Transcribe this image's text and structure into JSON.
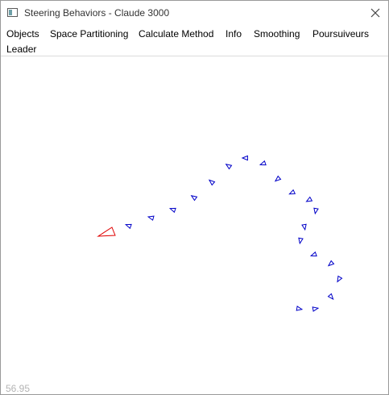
{
  "window": {
    "title": "Steering Behaviors - Claude 3000",
    "icon": "app-window-icon",
    "close_icon": "close-icon"
  },
  "menu": {
    "items": [
      {
        "label": "Objects"
      },
      {
        "label": "Space Partitioning"
      },
      {
        "label": "Calculate Method"
      },
      {
        "label": "Info"
      },
      {
        "label": "Smoothing"
      },
      {
        "label": "Poursuiveurs"
      },
      {
        "label": "Leader"
      }
    ]
  },
  "scene": {
    "leader_color": "#e00000",
    "follower_color": "#0000c8",
    "follower_count": 20,
    "fps_readout": "56.95"
  }
}
